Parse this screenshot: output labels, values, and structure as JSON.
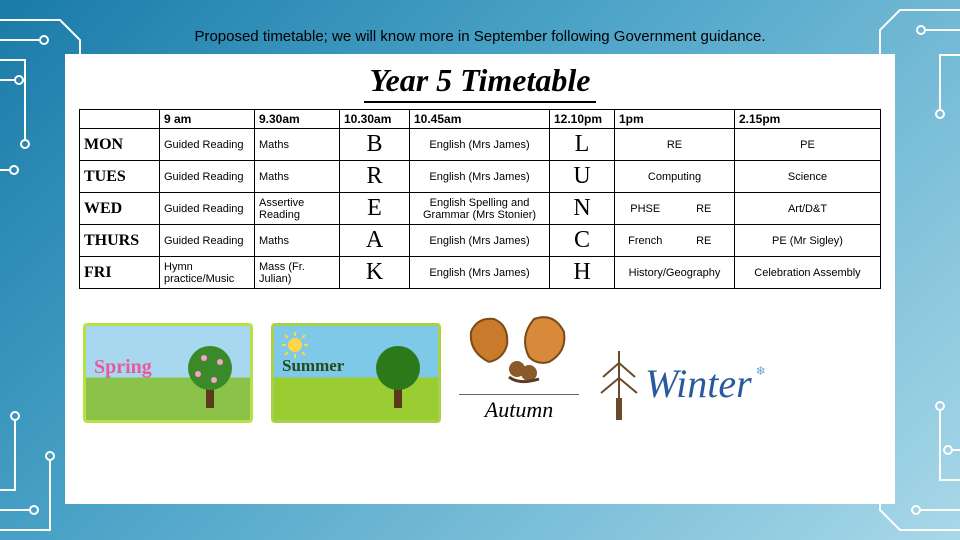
{
  "caption": "Proposed timetable; we will know more in September following Government guidance.",
  "title": "Year 5 Timetable",
  "headers": [
    "",
    "9 am",
    "9.30am",
    "10.30am",
    "10.45am",
    "12.10pm",
    "1pm",
    "2.15pm"
  ],
  "vertical1": [
    "B",
    "R",
    "E",
    "A",
    "K"
  ],
  "vertical2": [
    "L",
    "U",
    "N",
    "C",
    "H"
  ],
  "rows": [
    {
      "day": "MON",
      "c9": "Guided Reading",
      "c930": "Maths",
      "c1045": "English (Mrs James)",
      "c1a": "RE",
      "c1b": "",
      "c215": "PE"
    },
    {
      "day": "TUES",
      "c9": "Guided Reading",
      "c930": "Maths",
      "c1045": "English (Mrs James)",
      "c1a": "Computing",
      "c1b": "",
      "c215": "Science"
    },
    {
      "day": "WED",
      "c9": "Guided Reading",
      "c930": "Assertive Reading",
      "c1045": "English Spelling and Grammar (Mrs Stonier)",
      "c1a": "PHSE",
      "c1b": "RE",
      "c215": "Art/D&T"
    },
    {
      "day": "THURS",
      "c9": "Guided Reading",
      "c930": "Maths",
      "c1045": "English (Mrs James)",
      "c1a": "French",
      "c1b": "RE",
      "c215": "PE (Mr Sigley)"
    },
    {
      "day": "FRI",
      "c9": "Hymn practice/Music",
      "c930": "Mass (Fr. Julian)",
      "c1045": "English (Mrs James)",
      "c1a": "History/Geography",
      "c1b": "",
      "c215": "Celebration Assembly"
    }
  ],
  "seasons": {
    "spring": "Spring",
    "summer": "Summer",
    "autumn": "Autumn",
    "winter": "Winter"
  },
  "colors": {
    "circuit": "#ffffff",
    "winter_text": "#2a5a9e"
  }
}
